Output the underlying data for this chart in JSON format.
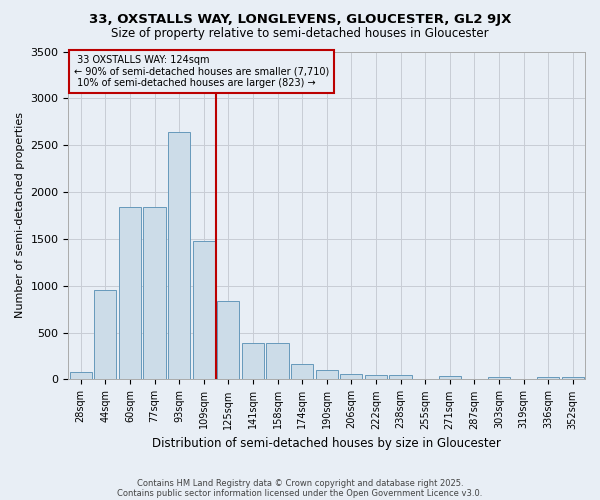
{
  "title": "33, OXSTALLS WAY, LONGLEVENS, GLOUCESTER, GL2 9JX",
  "subtitle": "Size of property relative to semi-detached houses in Gloucester",
  "xlabel": "Distribution of semi-detached houses by size in Gloucester",
  "ylabel": "Number of semi-detached properties",
  "bar_color": "#ccdce8",
  "bar_edge_color": "#6699bb",
  "background_color": "#e8eef5",
  "grid_color": "#c8ccd4",
  "categories": [
    "28sqm",
    "44sqm",
    "60sqm",
    "77sqm",
    "93sqm",
    "109sqm",
    "125sqm",
    "141sqm",
    "158sqm",
    "174sqm",
    "190sqm",
    "206sqm",
    "222sqm",
    "238sqm",
    "255sqm",
    "271sqm",
    "287sqm",
    "303sqm",
    "319sqm",
    "336sqm",
    "352sqm"
  ],
  "values": [
    75,
    950,
    1840,
    1840,
    2640,
    1480,
    840,
    390,
    390,
    170,
    100,
    55,
    50,
    45,
    0,
    35,
    0,
    30,
    0,
    30,
    30
  ],
  "line_x_index": 5.5,
  "property_label": "33 OXSTALLS WAY: 124sqm",
  "pct_smaller": 90,
  "num_smaller": "7,710",
  "pct_larger": 10,
  "num_larger": 823,
  "line_color": "#bb0000",
  "ylim": [
    0,
    3500
  ],
  "yticks": [
    0,
    500,
    1000,
    1500,
    2000,
    2500,
    3000,
    3500
  ],
  "footnote1": "Contains HM Land Registry data © Crown copyright and database right 2025.",
  "footnote2": "Contains public sector information licensed under the Open Government Licence v3.0."
}
